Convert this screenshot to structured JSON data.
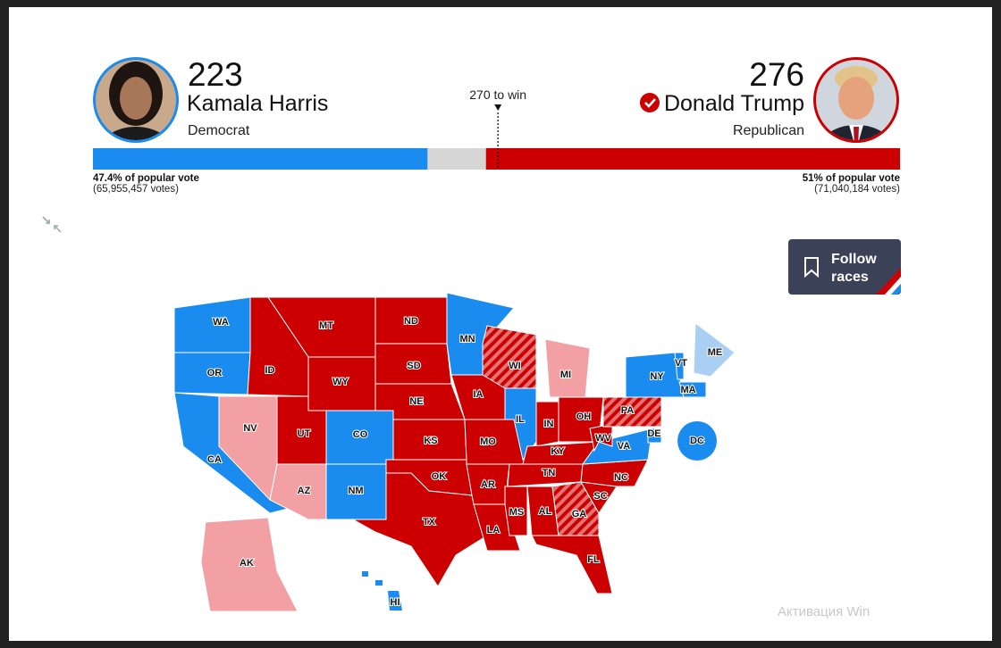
{
  "harris": {
    "electoral_votes": 223,
    "name": "Kamala Harris",
    "party": "Democrat",
    "popular_vote": "47.4% of popular vote",
    "votes": "(65,955,457 votes)",
    "color": "#1a8cf0"
  },
  "trump": {
    "electoral_votes": 276,
    "name": "Donald Trump",
    "party": "Republican",
    "popular_vote": "51% of popular vote",
    "votes": "(71,040,184 votes)",
    "color": "#cc0000"
  },
  "win_threshold": {
    "value": 270,
    "label": "270 to win"
  },
  "follow_button": [
    "Follow",
    "races"
  ],
  "map": {
    "states": [
      {
        "label": "WA",
        "color": "#1a8cf0"
      },
      {
        "label": "OR",
        "color": "#1a8cf0"
      },
      {
        "label": "CA",
        "color": "#1a8cf0"
      },
      {
        "label": "NV",
        "color": "#f2a0a4"
      },
      {
        "label": "ID",
        "color": "#cc0000"
      },
      {
        "label": "MT",
        "color": "#cc0000"
      },
      {
        "label": "WY",
        "color": "#cc0000"
      },
      {
        "label": "UT",
        "color": "#cc0000"
      },
      {
        "label": "CO",
        "color": "#1a8cf0"
      },
      {
        "label": "AZ",
        "color": "#f2a0a4"
      },
      {
        "label": "NM",
        "color": "#1a8cf0"
      },
      {
        "label": "ND",
        "color": "#cc0000"
      },
      {
        "label": "SD",
        "color": "#cc0000"
      },
      {
        "label": "NE",
        "color": "#cc0000"
      },
      {
        "label": "KS",
        "color": "#cc0000"
      },
      {
        "label": "OK",
        "color": "#cc0000"
      },
      {
        "label": "TX",
        "color": "#cc0000"
      },
      {
        "label": "MN",
        "color": "#1a8cf0"
      },
      {
        "label": "IA",
        "color": "#cc0000"
      },
      {
        "label": "MO",
        "color": "#cc0000"
      },
      {
        "label": "AR",
        "color": "#cc0000"
      },
      {
        "label": "LA",
        "color": "#cc0000"
      },
      {
        "label": "WI",
        "color": "#cc0000",
        "hatched": true
      },
      {
        "label": "IL",
        "color": "#1a8cf0"
      },
      {
        "label": "MI",
        "color": "#f2a0a4"
      },
      {
        "label": "IN",
        "color": "#cc0000"
      },
      {
        "label": "OH",
        "color": "#cc0000"
      },
      {
        "label": "KY",
        "color": "#cc0000"
      },
      {
        "label": "TN",
        "color": "#cc0000"
      },
      {
        "label": "MS",
        "color": "#cc0000"
      },
      {
        "label": "AL",
        "color": "#cc0000"
      },
      {
        "label": "GA",
        "color": "#cc0000",
        "hatched": true
      },
      {
        "label": "FL",
        "color": "#cc0000"
      },
      {
        "label": "SC",
        "color": "#cc0000"
      },
      {
        "label": "NC",
        "color": "#cc0000"
      },
      {
        "label": "VA",
        "color": "#1a8cf0"
      },
      {
        "label": "WV",
        "color": "#cc0000"
      },
      {
        "label": "PA",
        "color": "#cc0000",
        "hatched": true
      },
      {
        "label": "NY",
        "color": "#1a8cf0"
      },
      {
        "label": "VT",
        "color": "#1a8cf0"
      },
      {
        "label": "MA",
        "color": "#1a8cf0"
      },
      {
        "label": "ME",
        "color": "#a9cff3"
      },
      {
        "label": "DE",
        "color": "#1a8cf0"
      },
      {
        "label": "DC",
        "color": "#1a8cf0"
      },
      {
        "label": "AK",
        "color": "#f2a0a4"
      },
      {
        "label": "HI",
        "color": "#1a8cf0"
      }
    ]
  },
  "watermark": "Активация Win"
}
